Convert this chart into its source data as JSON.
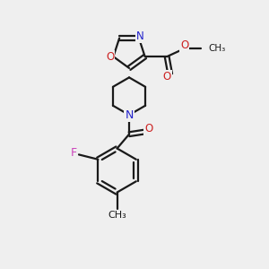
{
  "background_color": "#efefef",
  "bond_color": "#1a1a1a",
  "heteroatom_N_color": "#2222cc",
  "heteroatom_O_color": "#cc2222",
  "heteroatom_F_color": "#cc44bb",
  "line_width": 1.6,
  "figsize": [
    3.0,
    3.0
  ],
  "dpi": 100,
  "xlim": [
    0,
    10
  ],
  "ylim": [
    0,
    10
  ]
}
